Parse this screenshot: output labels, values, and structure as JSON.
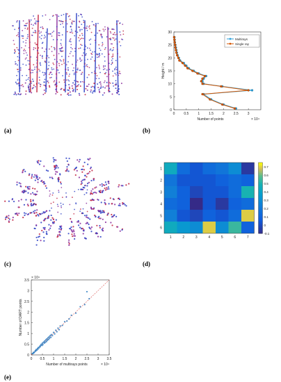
{
  "captions": {
    "a": "(a)",
    "b": "(b)",
    "c": "(c)",
    "d": "(d)",
    "e": "(e)"
  },
  "colors": {
    "multirays": "#2a9fd8",
    "single_ray": "#d35400",
    "point_blue": "#2b3fc4",
    "point_purple": "#8a2a9b",
    "point_red": "#c0203e",
    "scatter": "#2b7cc2",
    "identity": "#d9534f"
  },
  "chart_data": [
    {
      "id": "b",
      "type": "line",
      "xlabel": "Number of points",
      "ylabel": "Height / m",
      "x_multiplier": "× 10⁴",
      "xlim": [
        0,
        3.5
      ],
      "ylim": [
        0,
        30
      ],
      "xticks": [
        "0",
        "0.5",
        "1",
        "1.5",
        "2",
        "2.5",
        "3"
      ],
      "yticks": [
        "0",
        "5",
        "10",
        "15",
        "20",
        "25",
        "30"
      ],
      "legend_position": "top-right",
      "series": [
        {
          "name": "Multirays",
          "y": [
            0.5,
            2,
            4,
            6,
            7.5,
            9,
            10,
            11,
            12,
            13,
            14,
            15,
            16,
            17,
            18,
            19,
            20,
            21,
            22,
            23,
            24,
            25,
            26,
            27,
            28
          ],
          "x": [
            2.5,
            2.0,
            1.5,
            1.2,
            3.15,
            1.95,
            1.2,
            1.15,
            1.2,
            1.3,
            1.0,
            0.8,
            0.6,
            0.5,
            0.4,
            0.25,
            0.2,
            0.15,
            0.12,
            0.1,
            0.08,
            0.06,
            0.04,
            0.03,
            0.02
          ]
        },
        {
          "name": "Single ray",
          "y": [
            0.5,
            2,
            4,
            6,
            7.5,
            9,
            10,
            11,
            12,
            13,
            14,
            15,
            16,
            17,
            18,
            19,
            20,
            21,
            22,
            23,
            24,
            25,
            26,
            27,
            28
          ],
          "x": [
            2.45,
            1.95,
            1.45,
            1.15,
            3.0,
            1.9,
            1.15,
            1.1,
            1.15,
            1.25,
            0.95,
            0.75,
            0.55,
            0.45,
            0.35,
            0.22,
            0.18,
            0.13,
            0.1,
            0.08,
            0.06,
            0.05,
            0.03,
            0.02,
            0.01
          ]
        }
      ]
    },
    {
      "id": "d",
      "type": "heatmap",
      "rows": [
        "1",
        "2",
        "3",
        "4",
        "5",
        "6"
      ],
      "cols": [
        "1",
        "2",
        "3",
        "4",
        "5",
        "6",
        "7"
      ],
      "colorbar_ticks": [
        "0.7",
        "0.6",
        "0.5",
        "0.4",
        "0.3",
        "0.2",
        "0.1",
        "0",
        "-0.1"
      ],
      "vmin": -0.1,
      "vmax": 0.75,
      "values": [
        [
          0.45,
          0.15,
          0.05,
          0.15,
          0.2,
          0.3,
          -0.05
        ],
        [
          0.2,
          0.05,
          0.05,
          0.05,
          0.1,
          0.15,
          0.1
        ],
        [
          0.25,
          0.1,
          0.0,
          0.05,
          0.05,
          0.15,
          0.5
        ],
        [
          0.15,
          0.1,
          -0.1,
          0.05,
          -0.05,
          0.1,
          0.15
        ],
        [
          0.25,
          0.05,
          0.0,
          0.1,
          0.05,
          0.15,
          0.7
        ],
        [
          0.45,
          0.35,
          0.3,
          0.7,
          0.3,
          0.55,
          0.1
        ]
      ]
    },
    {
      "id": "e",
      "type": "scatter",
      "xlabel": "Number of multirays points",
      "ylabel": "Number of DART points",
      "x_multiplier": "× 10⁴",
      "y_multiplier": "× 10⁴",
      "xlim": [
        0,
        3.5
      ],
      "ylim": [
        0,
        3.5
      ],
      "xticks": [
        "0",
        "0.5",
        "1",
        "1.5",
        "2",
        "2.5",
        "3",
        "3.5"
      ],
      "yticks": [
        "0",
        "0.5",
        "1",
        "1.5",
        "2",
        "2.5",
        "3",
        "3.5"
      ],
      "points": [
        [
          0.05,
          0.06
        ],
        [
          0.08,
          0.07
        ],
        [
          0.1,
          0.12
        ],
        [
          0.12,
          0.1
        ],
        [
          0.15,
          0.14
        ],
        [
          0.18,
          0.2
        ],
        [
          0.2,
          0.18
        ],
        [
          0.22,
          0.25
        ],
        [
          0.25,
          0.22
        ],
        [
          0.28,
          0.3
        ],
        [
          0.3,
          0.27
        ],
        [
          0.32,
          0.35
        ],
        [
          0.35,
          0.33
        ],
        [
          0.38,
          0.4
        ],
        [
          0.4,
          0.38
        ],
        [
          0.42,
          0.45
        ],
        [
          0.45,
          0.5
        ],
        [
          0.48,
          0.44
        ],
        [
          0.5,
          0.55
        ],
        [
          0.52,
          0.48
        ],
        [
          0.55,
          0.6
        ],
        [
          0.58,
          0.55
        ],
        [
          0.6,
          0.65
        ],
        [
          0.62,
          0.58
        ],
        [
          0.65,
          0.7
        ],
        [
          0.68,
          0.62
        ],
        [
          0.7,
          0.75
        ],
        [
          0.72,
          0.68
        ],
        [
          0.75,
          0.8
        ],
        [
          0.78,
          0.72
        ],
        [
          0.8,
          0.85
        ],
        [
          0.82,
          0.78
        ],
        [
          0.85,
          0.9
        ],
        [
          0.88,
          0.82
        ],
        [
          0.9,
          0.95
        ],
        [
          0.95,
          0.9
        ],
        [
          1.0,
          1.05
        ],
        [
          1.05,
          0.98
        ],
        [
          1.1,
          1.15
        ],
        [
          1.15,
          1.08
        ],
        [
          1.2,
          1.25
        ],
        [
          1.25,
          1.18
        ],
        [
          1.3,
          1.35
        ],
        [
          1.4,
          1.38
        ],
        [
          1.5,
          1.55
        ],
        [
          1.6,
          1.58
        ],
        [
          1.7,
          1.68
        ],
        [
          1.8,
          1.85
        ],
        [
          2.0,
          1.95
        ],
        [
          2.2,
          2.25
        ],
        [
          2.4,
          2.35
        ],
        [
          2.6,
          2.62
        ],
        [
          2.5,
          2.95
        ]
      ]
    }
  ]
}
